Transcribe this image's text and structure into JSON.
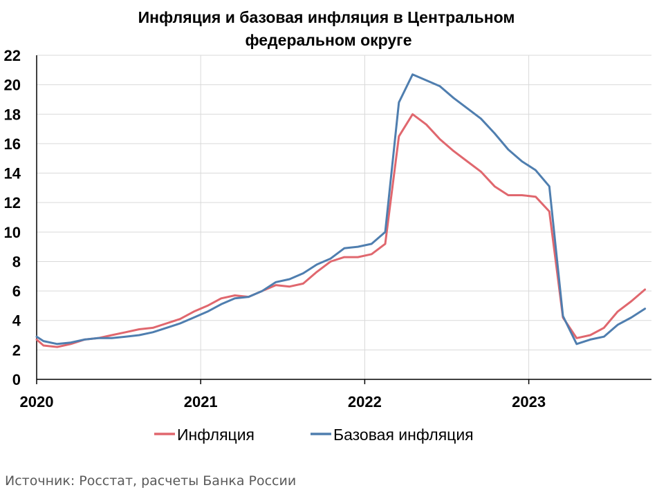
{
  "title_lines": [
    "Инфляция и базовая инфляция в Центральном",
    "федеральном округе"
  ],
  "source": "Источник: Росстат, расчеты Банка России",
  "chart_data": {
    "type": "line",
    "title": "Инфляция и базовая инфляция в Центральном федеральном округе",
    "xlabel": "",
    "ylabel": "",
    "xlim": [
      2020.0,
      2023.75
    ],
    "ylim": [
      0,
      22
    ],
    "y_ticks": [
      "0",
      "2",
      "4",
      "6",
      "8",
      "10",
      "12",
      "14",
      "16",
      "18",
      "20",
      "22"
    ],
    "x_ticks": [
      {
        "value": 2020,
        "label": "2020"
      },
      {
        "value": 2021,
        "label": "2021"
      },
      {
        "value": 2022,
        "label": "2022"
      },
      {
        "value": 2023,
        "label": "2023"
      }
    ],
    "grid": true,
    "legend_position": "bottom",
    "x_unit": "years (monthly observations)",
    "series": [
      {
        "name": "Инфляция",
        "color": "#E0676E",
        "x": [
          2020.0,
          2020.0417,
          2020.125,
          2020.2083,
          2020.2917,
          2020.375,
          2020.4583,
          2020.5417,
          2020.625,
          2020.7083,
          2020.7917,
          2020.875,
          2020.9583,
          2021.0417,
          2021.125,
          2021.2083,
          2021.2917,
          2021.375,
          2021.4583,
          2021.5417,
          2021.625,
          2021.7083,
          2021.7917,
          2021.875,
          2021.9583,
          2022.0417,
          2022.125,
          2022.2083,
          2022.2917,
          2022.375,
          2022.4583,
          2022.5417,
          2022.625,
          2022.7083,
          2022.7917,
          2022.875,
          2022.9583,
          2023.0417,
          2023.125,
          2023.2083,
          2023.2917,
          2023.375,
          2023.4583,
          2023.5417,
          2023.625,
          2023.7083
        ],
        "values": [
          2.7,
          2.3,
          2.2,
          2.4,
          2.7,
          2.8,
          3.0,
          3.2,
          3.4,
          3.5,
          3.8,
          4.1,
          4.6,
          5.0,
          5.5,
          5.7,
          5.6,
          6.0,
          6.4,
          6.3,
          6.5,
          7.3,
          8.0,
          8.3,
          8.3,
          8.5,
          9.2,
          16.5,
          18.0,
          17.3,
          16.3,
          15.5,
          14.8,
          14.1,
          13.1,
          12.5,
          12.5,
          12.4,
          11.4,
          4.2,
          2.8,
          3.0,
          3.5,
          4.6,
          5.3,
          6.1
        ]
      },
      {
        "name": "Базовая инфляция",
        "color": "#4F7EAF",
        "x": [
          2020.0,
          2020.0417,
          2020.125,
          2020.2083,
          2020.2917,
          2020.375,
          2020.4583,
          2020.5417,
          2020.625,
          2020.7083,
          2020.7917,
          2020.875,
          2020.9583,
          2021.0417,
          2021.125,
          2021.2083,
          2021.2917,
          2021.375,
          2021.4583,
          2021.5417,
          2021.625,
          2021.7083,
          2021.7917,
          2021.875,
          2021.9583,
          2022.0417,
          2022.125,
          2022.2083,
          2022.2917,
          2022.375,
          2022.4583,
          2022.5417,
          2022.625,
          2022.7083,
          2022.7917,
          2022.875,
          2022.9583,
          2023.0417,
          2023.125,
          2023.2083,
          2023.2917,
          2023.375,
          2023.4583,
          2023.5417,
          2023.625,
          2023.7083
        ],
        "values": [
          2.9,
          2.6,
          2.4,
          2.5,
          2.7,
          2.8,
          2.8,
          2.9,
          3.0,
          3.2,
          3.5,
          3.8,
          4.2,
          4.6,
          5.1,
          5.5,
          5.6,
          6.0,
          6.6,
          6.8,
          7.2,
          7.8,
          8.2,
          8.9,
          9.0,
          9.2,
          10.0,
          18.8,
          20.7,
          20.3,
          19.9,
          19.1,
          18.4,
          17.7,
          16.7,
          15.6,
          14.8,
          14.2,
          13.1,
          4.3,
          2.4,
          2.7,
          2.9,
          3.7,
          4.2,
          4.8
        ]
      }
    ]
  }
}
